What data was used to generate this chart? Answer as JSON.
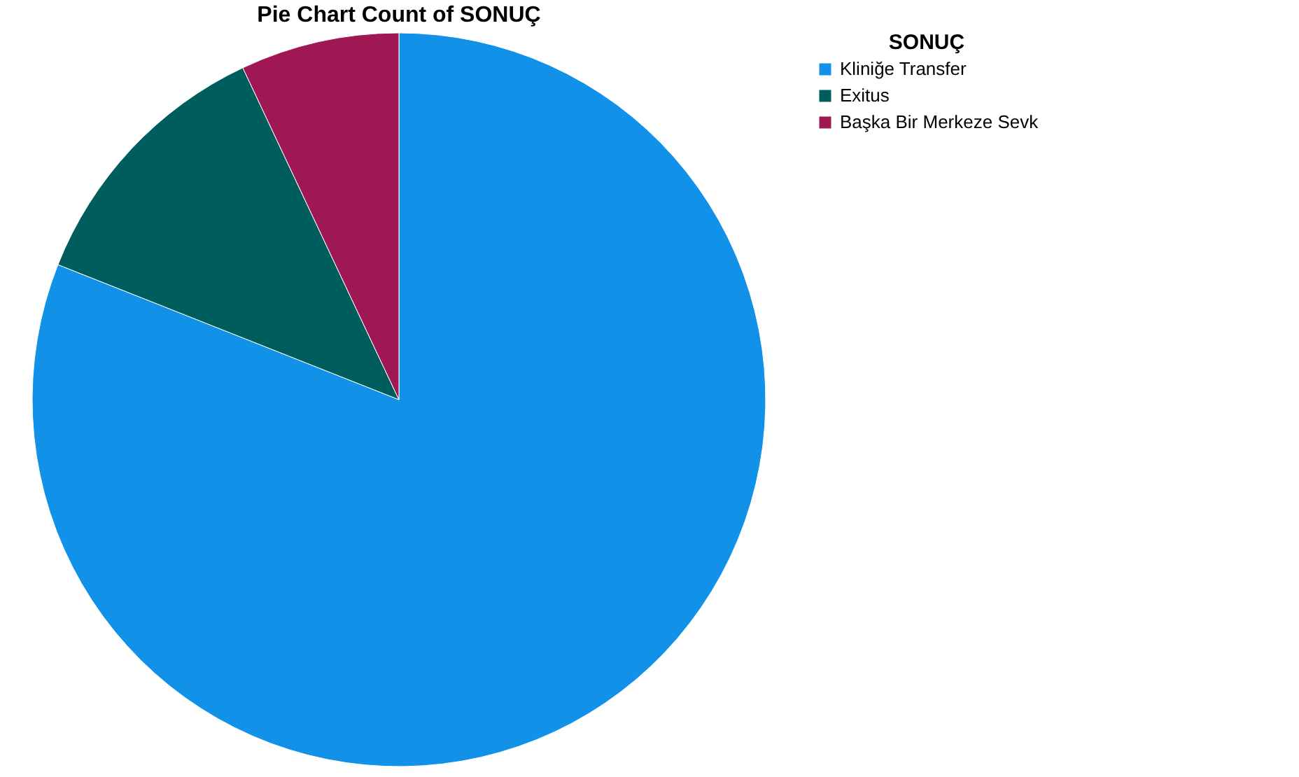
{
  "chart_data": {
    "type": "pie",
    "title": "Pie Chart Count of SONUÇ",
    "legend_title": "SONUÇ",
    "categories": [
      "Kliniğe Transfer",
      "Exitus",
      "Başka Bir Merkeze Sevk"
    ],
    "values": [
      81,
      12,
      7
    ],
    "colors": [
      "#1192e8",
      "#005d5d",
      "#9f1853"
    ],
    "legend": "top right"
  }
}
